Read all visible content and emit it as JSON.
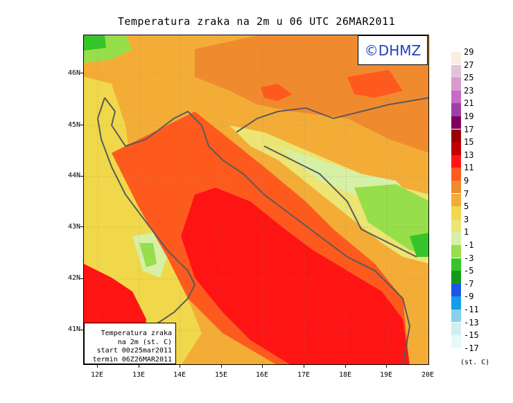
{
  "title": "Temperatura zraka na 2m u 06 UTC 26MAR2011",
  "logo_text": "©DHMZ",
  "lat_labels": [
    "46N",
    "45N",
    "44N",
    "43N",
    "42N",
    "41N"
  ],
  "lon_labels": [
    "12E",
    "13E",
    "14E",
    "15E",
    "16E",
    "17E",
    "18E",
    "19E",
    "20E"
  ],
  "info_box": {
    "line1": "Temperatura zraka",
    "line2": "na 2m (st. C)",
    "line3": "start 00z25mar2011",
    "line4": "termin 06Z26MAR2011"
  },
  "legend": {
    "unit": "(st. C)",
    "levels": [
      "29",
      "27",
      "25",
      "23",
      "21",
      "19",
      "17",
      "15",
      "13",
      "11",
      "9",
      "7",
      "5",
      "3",
      "1",
      "-1",
      "-3",
      "-5",
      "-7",
      "-9",
      "-11",
      "-13",
      "-15",
      "-17"
    ],
    "colors": [
      "#fbeee0",
      "#e3c3d6",
      "#d79bd0",
      "#c76bc8",
      "#a23ea9",
      "#800060",
      "#9b0000",
      "#c30000",
      "#ff1414",
      "#ff5a1e",
      "#f08a2e",
      "#f3ad37",
      "#f0d84a",
      "#ece473",
      "#d6f0a6",
      "#96de4a",
      "#36c42b",
      "#129a17",
      "#1d55e8",
      "#129ee8",
      "#8ad0e8",
      "#cfeff2",
      "#e6f8fa"
    ]
  },
  "colors": {
    "sea_red": "#ff1414",
    "orange": "#f08a2e",
    "dark_orange": "#ff5a1e",
    "light_orange": "#f3ad37",
    "yellow": "#f0d84a",
    "pale_yellow": "#ece473",
    "pale_green": "#d6f0a6",
    "green": "#96de4a",
    "dark_green": "#36c42b",
    "coast": "#5a5a5a",
    "logo_blue": "#1f3fbf"
  }
}
